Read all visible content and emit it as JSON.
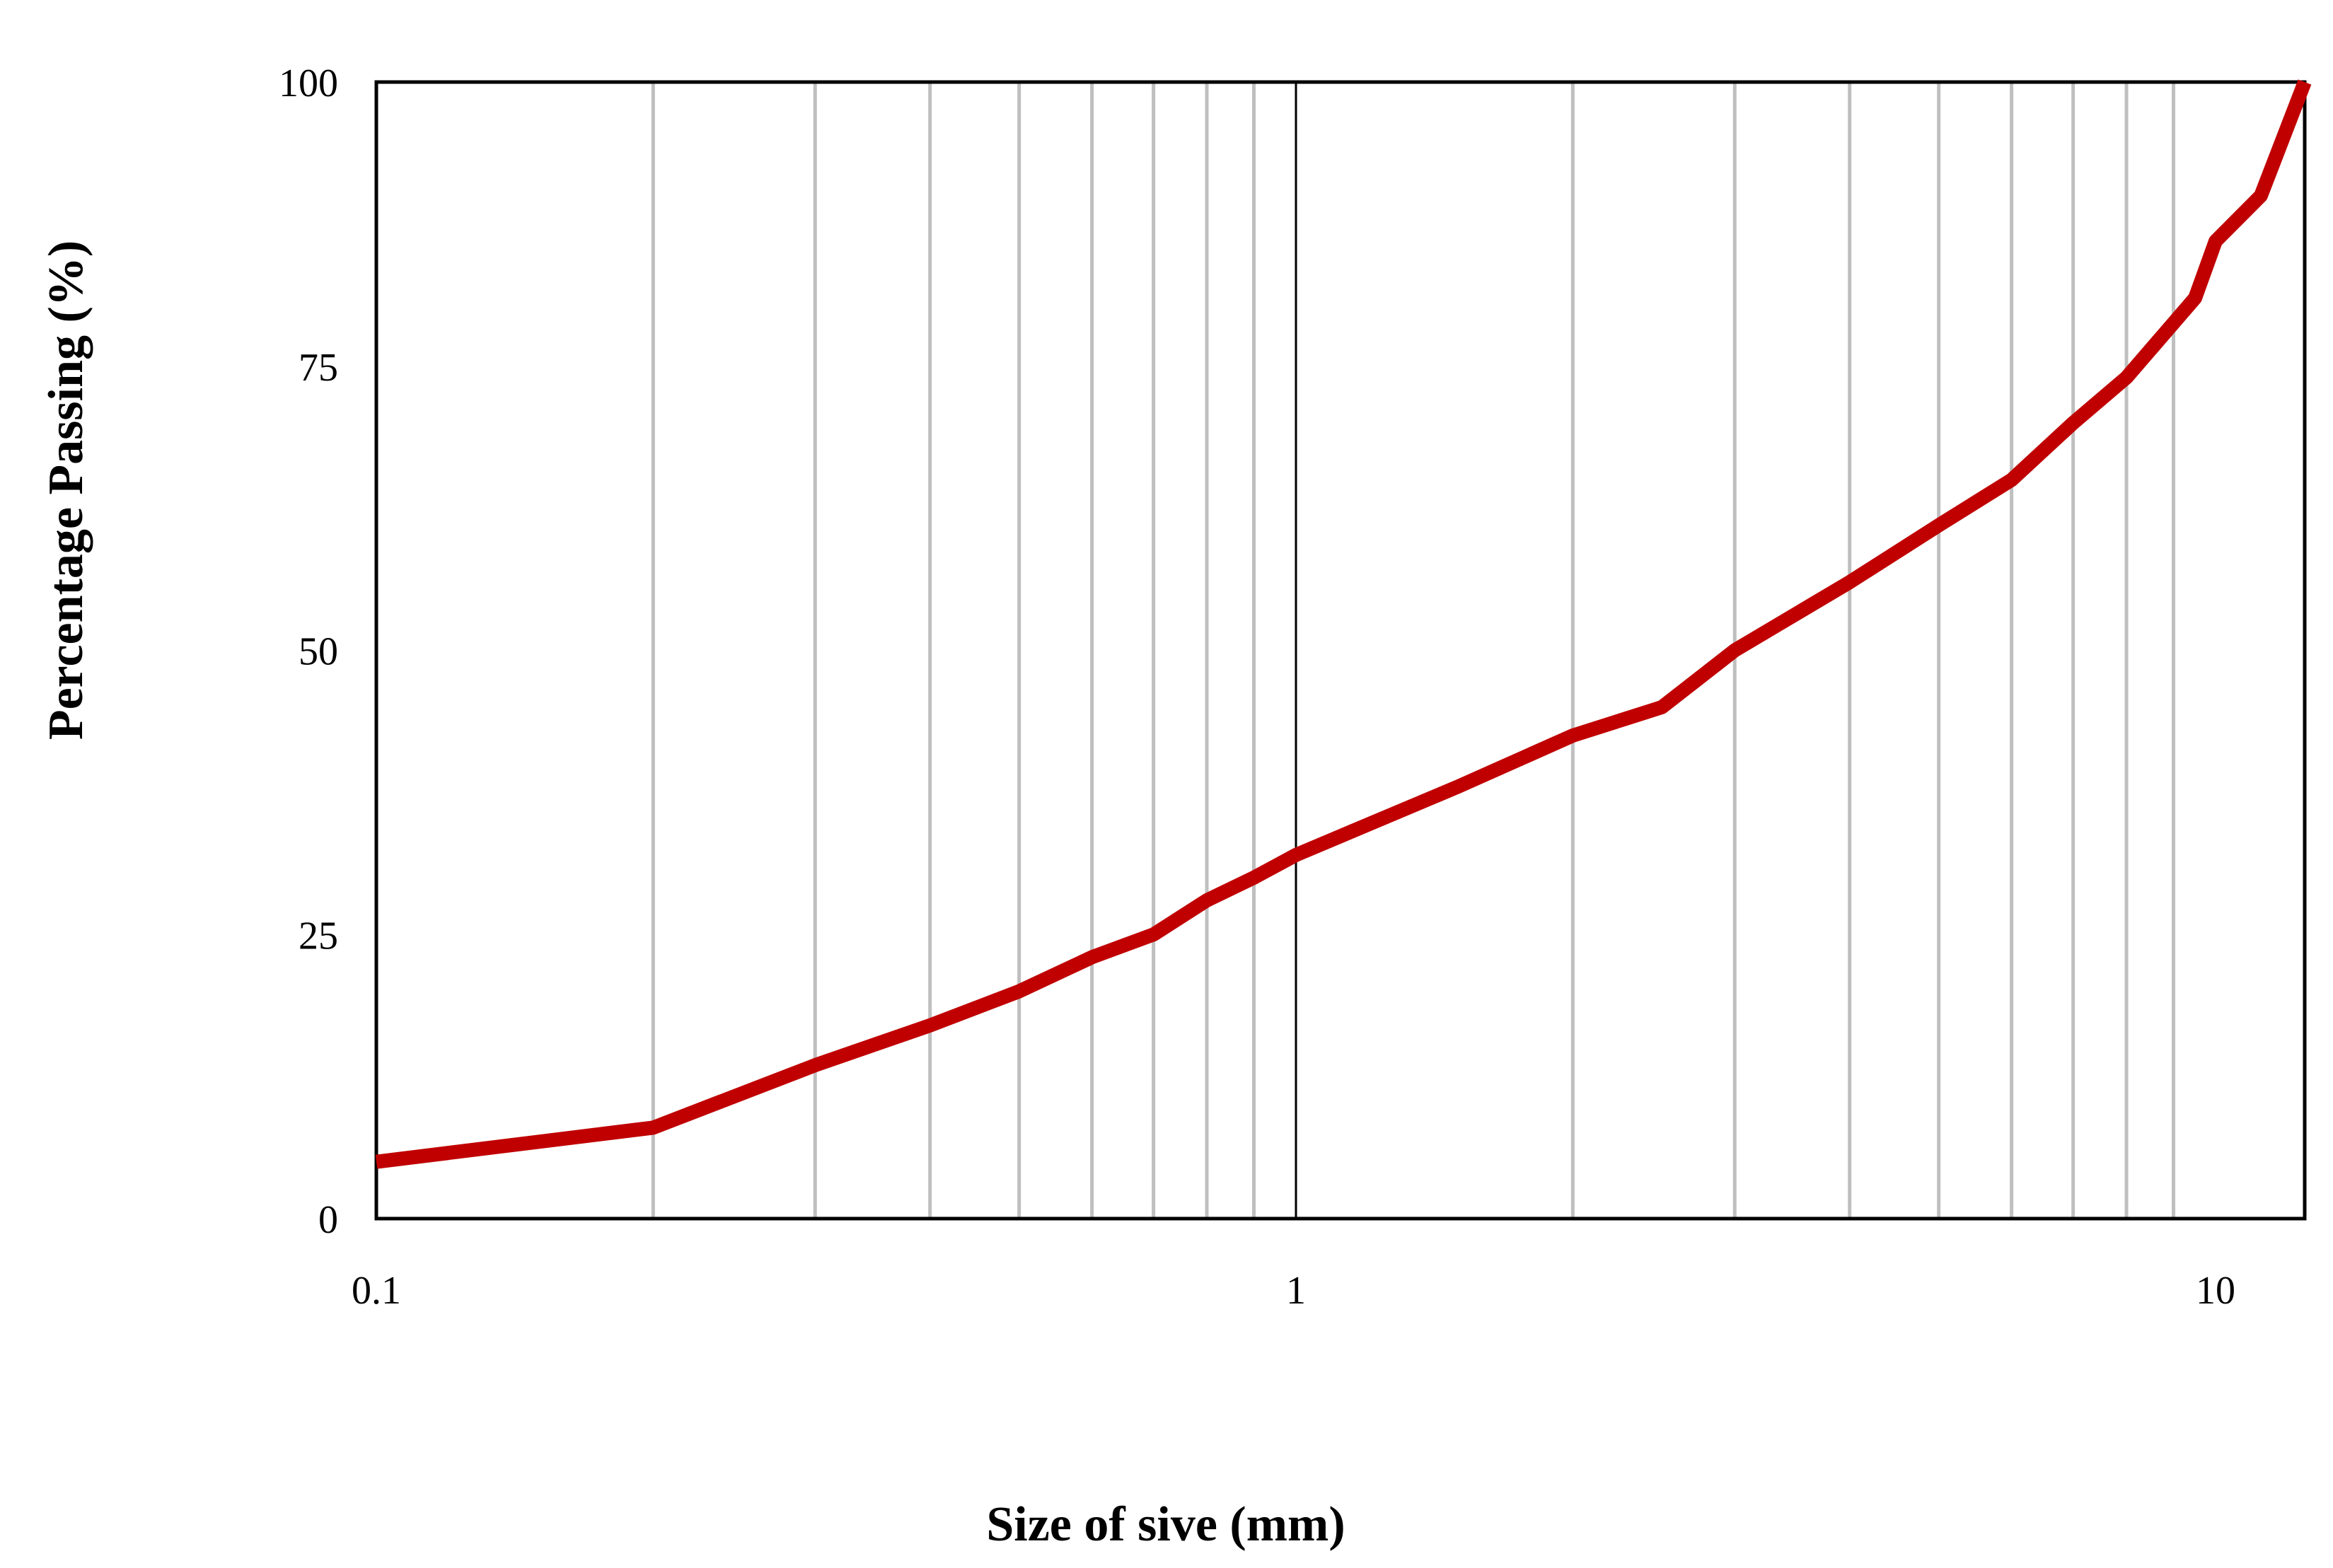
{
  "chart_data": {
    "type": "line",
    "title": "",
    "xlabel": "Size of sive (mm)",
    "ylabel": "Percentage Passing (%)",
    "x_scale": "log",
    "xlim": [
      0.1,
      12.5
    ],
    "ylim": [
      0,
      100
    ],
    "x_ticks": [
      {
        "value": 0.1,
        "label": "0.1"
      },
      {
        "value": 1,
        "label": "1"
      },
      {
        "value": 10,
        "label": "10"
      }
    ],
    "y_ticks": [
      {
        "value": 0,
        "label": "0"
      },
      {
        "value": 25,
        "label": "25"
      },
      {
        "value": 50,
        "label": "50"
      },
      {
        "value": 75,
        "label": "75"
      },
      {
        "value": 100,
        "label": "100"
      }
    ],
    "grid": {
      "vertical_minor": true,
      "horizontal": false,
      "minor_lines_x": [
        0.2,
        0.3,
        0.4,
        0.5,
        0.6,
        0.7,
        0.8,
        0.9,
        2,
        3,
        4,
        5,
        6,
        7,
        8,
        9
      ],
      "major_lines_x": [
        1
      ]
    },
    "legend": "none",
    "colors": {
      "series": "#c00000",
      "minor_grid": "#bfbfbf",
      "major_grid": "#000000",
      "axis": "#000000"
    },
    "series": [
      {
        "x": [
          0.1,
          0.2,
          0.3,
          0.4,
          0.5,
          0.6,
          0.7,
          0.8,
          0.9,
          1,
          1.5,
          2,
          2.5,
          3,
          4,
          5,
          6,
          7,
          8,
          9.5,
          10,
          11.2,
          12.5
        ],
        "y": [
          5,
          8,
          13.5,
          17,
          20,
          23,
          25,
          28,
          30,
          32,
          38,
          42.5,
          45,
          50,
          56,
          61,
          65,
          70,
          74,
          81,
          86,
          90,
          100
        ]
      }
    ]
  }
}
